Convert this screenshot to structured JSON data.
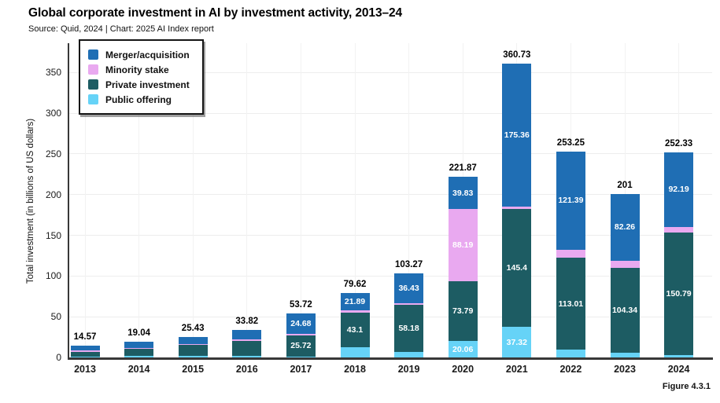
{
  "header": {
    "title": "Global corporate investment in AI by investment activity, 2013–24",
    "source": "Source: Quid, 2024 | Chart: 2025 AI Index report"
  },
  "figure_label": "Figure 4.3.1",
  "chart_data": {
    "type": "bar",
    "stacked": true,
    "title": "Global corporate investment in AI by investment activity, 2013–24",
    "ylabel": "Total investment (in billions of US dollars)",
    "xlabel": "",
    "ylim": [
      0,
      386
    ],
    "yticks": [
      0,
      50,
      100,
      150,
      200,
      250,
      300,
      350
    ],
    "grid": true,
    "legend_position": "top-left",
    "categories": [
      "2013",
      "2014",
      "2015",
      "2016",
      "2017",
      "2018",
      "2019",
      "2020",
      "2021",
      "2022",
      "2023",
      "2024"
    ],
    "series": [
      {
        "name": "Merger/acquisition",
        "color": "#1f6eb4",
        "values": [
          5.8,
          7.6,
          8.7,
          11.62,
          24.68,
          21.89,
          36.43,
          39.83,
          175.36,
          121.39,
          82.26,
          92.19
        ]
      },
      {
        "name": "Minority stake",
        "color": "#e9a9f0",
        "values": [
          1.8,
          0.5,
          1.43,
          1.9,
          2.0,
          2.43,
          2.2,
          88.19,
          2.65,
          9.3,
          8.9,
          6.55
        ]
      },
      {
        "name": "Private investment",
        "color": "#1d5c63",
        "values": [
          6.1,
          9.0,
          13.5,
          18.3,
          25.72,
          43.1,
          58.18,
          73.79,
          145.4,
          113.01,
          104.34,
          150.79
        ]
      },
      {
        "name": "Public offering",
        "color": "#66d3f7",
        "values": [
          0.87,
          1.94,
          1.8,
          2.0,
          1.32,
          12.2,
          6.46,
          20.06,
          37.32,
          9.55,
          5.5,
          2.8
        ]
      }
    ],
    "stack_order_bottom_to_top": [
      "Public offering",
      "Private investment",
      "Minority stake",
      "Merger/acquisition"
    ],
    "legend_order": [
      "Merger/acquisition",
      "Minority stake",
      "Private investment",
      "Public offering"
    ],
    "totals": [
      14.57,
      19.04,
      25.43,
      33.82,
      53.72,
      79.62,
      103.27,
      221.87,
      360.73,
      253.25,
      201,
      252.33
    ],
    "segment_label_min_value": 20
  }
}
